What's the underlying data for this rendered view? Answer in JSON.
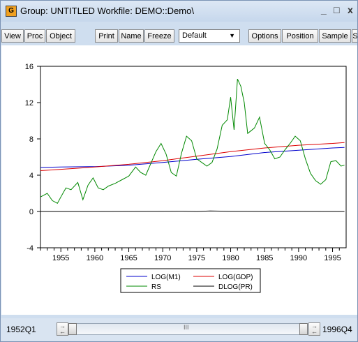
{
  "window": {
    "app_icon": "G",
    "title": "Group: UNTITLED   Workfile: DEMO::Demo\\",
    "minimize_glyph": "_",
    "maximize_glyph": "□",
    "close_glyph": "x"
  },
  "toolbar": {
    "view": "View",
    "proc": "Proc",
    "object": "Object",
    "print": "Print",
    "name": "Name",
    "freeze": "Freeze",
    "dropdown_value": "Default",
    "options": "Options",
    "position": "Position",
    "sample": "Sample",
    "overflow": "S"
  },
  "colors": {
    "log_m1": "#0000cc",
    "log_gdp": "#dd0000",
    "rs": "#008800",
    "dlog_pr": "#000000"
  },
  "chart_data": {
    "type": "line",
    "xlim": [
      1952.0,
      1997.0
    ],
    "ylim": [
      -4,
      16
    ],
    "yticks": [
      -4,
      0,
      4,
      8,
      12,
      16
    ],
    "xticks": [
      1955,
      1960,
      1965,
      1970,
      1975,
      1980,
      1985,
      1990,
      1995
    ],
    "grid": false,
    "legend_position": "bottom-center",
    "series": [
      {
        "name": "LOG(M1)",
        "color": "#0000cc",
        "x": [
          1952,
          1955,
          1960,
          1965,
          1970,
          1975,
          1980,
          1985,
          1990,
          1995,
          1996.75
        ],
        "values": [
          4.85,
          4.9,
          4.95,
          5.1,
          5.4,
          5.75,
          6.05,
          6.5,
          6.75,
          7.0,
          7.05
        ]
      },
      {
        "name": "LOG(GDP)",
        "color": "#dd0000",
        "x": [
          1952,
          1955,
          1960,
          1965,
          1970,
          1975,
          1980,
          1985,
          1990,
          1995,
          1996.75
        ],
        "values": [
          4.5,
          4.65,
          4.9,
          5.2,
          5.6,
          6.1,
          6.6,
          7.0,
          7.3,
          7.5,
          7.6
        ]
      },
      {
        "name": "RS",
        "color": "#008800",
        "x": [
          1952,
          1953,
          1953.75,
          1954.5,
          1955,
          1955.75,
          1956.5,
          1957.5,
          1958.25,
          1959,
          1959.75,
          1960.5,
          1961.25,
          1962,
          1963,
          1964,
          1965,
          1966,
          1966.75,
          1967.5,
          1968.25,
          1969,
          1969.75,
          1970.5,
          1971.25,
          1972,
          1972.75,
          1973.5,
          1974.25,
          1975,
          1975.75,
          1976.5,
          1977.25,
          1978,
          1978.75,
          1979.5,
          1980,
          1980.5,
          1981,
          1981.5,
          1982,
          1982.5,
          1983,
          1983.5,
          1984.25,
          1985,
          1985.75,
          1986.5,
          1987.25,
          1988,
          1988.75,
          1989.5,
          1990.25,
          1991,
          1991.75,
          1992.5,
          1993.25,
          1994,
          1994.75,
          1995.5,
          1996.25,
          1996.75
        ],
        "values": [
          1.6,
          2.0,
          1.2,
          0.9,
          1.6,
          2.6,
          2.4,
          3.2,
          1.3,
          2.9,
          3.7,
          2.6,
          2.4,
          2.8,
          3.1,
          3.5,
          3.9,
          4.9,
          4.3,
          4.0,
          5.3,
          6.6,
          7.5,
          6.3,
          4.3,
          3.9,
          6.4,
          8.3,
          7.8,
          5.8,
          5.4,
          5.0,
          5.4,
          6.9,
          9.5,
          10.1,
          12.6,
          9.0,
          14.6,
          13.8,
          12.0,
          8.6,
          8.9,
          9.2,
          10.4,
          7.5,
          6.8,
          5.8,
          6.0,
          6.8,
          7.5,
          8.3,
          7.8,
          5.8,
          4.2,
          3.4,
          3.0,
          3.5,
          5.5,
          5.6,
          5.0,
          5.1
        ]
      },
      {
        "name": "DLOG(PR)",
        "color": "#000000",
        "x": [
          1952,
          1960,
          1970,
          1973,
          1975,
          1977,
          1980,
          1985,
          1990,
          1996.75
        ],
        "values": [
          0.0,
          0.0,
          0.02,
          0.03,
          0.0,
          0.05,
          0.02,
          0.01,
          0.01,
          0.0
        ]
      }
    ]
  },
  "sample": {
    "start": "1952Q1",
    "end": "1996Q4",
    "thumb_grip": "III"
  }
}
